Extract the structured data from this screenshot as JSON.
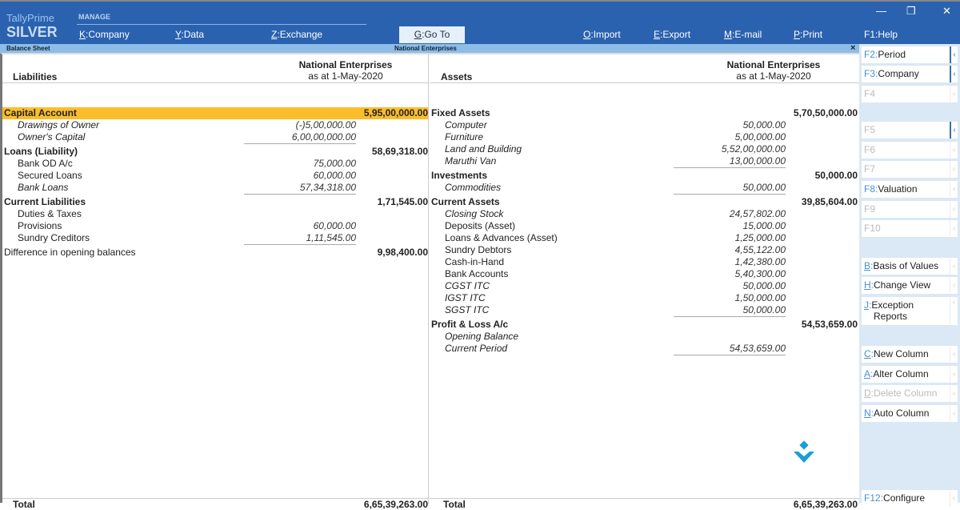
{
  "app": {
    "product": "TallyPrime",
    "edition": "SILVER",
    "section": "MANAGE"
  },
  "menu": [
    {
      "key": "K",
      "label": "Company"
    },
    {
      "key": "Y",
      "label": "Data"
    },
    {
      "key": "Z",
      "label": "Exchange"
    },
    {
      "key": "G",
      "label": "Go To"
    },
    {
      "key": "O",
      "label": "Import"
    },
    {
      "key": "E",
      "label": "Export"
    },
    {
      "key": "M",
      "label": "E-mail"
    },
    {
      "key": "P",
      "label": "Print"
    },
    {
      "key": "F1",
      "label": "Help"
    }
  ],
  "report": {
    "title": "Balance Sheet",
    "company": "National Enterprises",
    "date": "as at 1-May-2020",
    "close": "×"
  },
  "liabilities": {
    "heading": "Liabilities",
    "total_label": "Total",
    "total": "6,65,39,263.00",
    "rows": [
      {
        "type": "g",
        "label": "Capital Account",
        "amount": "5,95,00,000.00",
        "highlight": true
      },
      {
        "type": "i",
        "italic": true,
        "label": "Drawings of Owner",
        "sub": "(-)5,00,000.00"
      },
      {
        "type": "i",
        "italic": true,
        "label": "Owner's Capital",
        "sub": "6,00,00,000.00",
        "ul": true
      },
      {
        "type": "g",
        "label": "Loans (Liability)",
        "amount": "58,69,318.00"
      },
      {
        "type": "i",
        "label": "Bank OD A/c",
        "sub": "75,000.00"
      },
      {
        "type": "i",
        "label": "Secured Loans",
        "sub": "60,000.00"
      },
      {
        "type": "i",
        "italic": true,
        "label": "Bank Loans",
        "sub": "57,34,318.00",
        "ul": true
      },
      {
        "type": "g",
        "label": "Current Liabilities",
        "amount": "1,71,545.00"
      },
      {
        "type": "i",
        "label": "Duties & Taxes"
      },
      {
        "type": "i",
        "label": "Provisions",
        "sub": "60,000.00"
      },
      {
        "type": "i",
        "label": "Sundry Creditors",
        "sub": "1,11,545.00",
        "ul": true
      },
      {
        "type": "p",
        "label": "Difference in opening balances",
        "amount": "9,98,400.00"
      }
    ]
  },
  "assets": {
    "heading": "Assets",
    "total_label": "Total",
    "total": "6,65,39,263.00",
    "rows": [
      {
        "type": "g",
        "label": "Fixed Assets",
        "amount": "5,70,50,000.00"
      },
      {
        "type": "i",
        "italic": true,
        "label": "Computer",
        "sub": "50,000.00"
      },
      {
        "type": "i",
        "italic": true,
        "label": "Furniture",
        "sub": "5,00,000.00"
      },
      {
        "type": "i",
        "italic": true,
        "label": "Land and Building",
        "sub": "5,52,00,000.00"
      },
      {
        "type": "i",
        "italic": true,
        "label": "Maruthi Van",
        "sub": "13,00,000.00",
        "ul": true
      },
      {
        "type": "g",
        "label": "Investments",
        "amount": "50,000.00"
      },
      {
        "type": "i",
        "italic": true,
        "label": "Commodities",
        "sub": "50,000.00",
        "ul": true
      },
      {
        "type": "g",
        "label": "Current Assets",
        "amount": "39,85,604.00"
      },
      {
        "type": "i",
        "italic": true,
        "label": "Closing Stock",
        "sub": "24,57,802.00"
      },
      {
        "type": "i",
        "label": "Deposits (Asset)",
        "sub": "15,000.00"
      },
      {
        "type": "i",
        "label": "Loans & Advances (Asset)",
        "sub": "1,25,000.00"
      },
      {
        "type": "i",
        "label": "Sundry Debtors",
        "sub": "4,55,122.00"
      },
      {
        "type": "i",
        "label": "Cash-in-Hand",
        "sub": "1,42,380.00"
      },
      {
        "type": "i",
        "label": "Bank Accounts",
        "sub": "5,40,300.00"
      },
      {
        "type": "i",
        "italic": true,
        "label": "CGST ITC",
        "sub": "50,000.00"
      },
      {
        "type": "i",
        "italic": true,
        "label": "IGST ITC",
        "sub": "1,50,000.00"
      },
      {
        "type": "i",
        "italic": true,
        "label": "SGST ITC",
        "sub": "50,000.00",
        "ul": true
      },
      {
        "type": "g",
        "label": "Profit & Loss A/c",
        "amount": "54,53,659.00"
      },
      {
        "type": "i",
        "italic": true,
        "label": "Opening Balance"
      },
      {
        "type": "i",
        "italic": true,
        "label": "Current Period",
        "sub": "54,53,659.00",
        "ul": true
      }
    ]
  },
  "sidebar": [
    {
      "key": "F2",
      "label": "Period",
      "enabled": true,
      "active": true
    },
    {
      "key": "F3",
      "label": "Company",
      "enabled": true,
      "active": true
    },
    {
      "key": "F4",
      "label": "",
      "enabled": false
    },
    {
      "key": "F5",
      "label": "",
      "enabled": false,
      "active": true
    },
    {
      "key": "F6",
      "label": "",
      "enabled": false
    },
    {
      "key": "F7",
      "label": "",
      "enabled": false
    },
    {
      "key": "F8",
      "label": "Valuation",
      "enabled": true
    },
    {
      "key": "F9",
      "label": "",
      "enabled": false
    },
    {
      "key": "F10",
      "label": "",
      "enabled": false
    },
    {
      "key": "B",
      "label": "Basis of Values",
      "enabled": true
    },
    {
      "key": "H",
      "label": "Change View",
      "enabled": true
    },
    {
      "key": "J",
      "label": "Exception",
      "label2": "Reports",
      "enabled": true
    },
    {
      "key": "C",
      "label": "New Column",
      "enabled": true
    },
    {
      "key": "A",
      "label": "Alter Column",
      "enabled": true
    },
    {
      "key": "D",
      "label": "Delete Column",
      "enabled": false
    },
    {
      "key": "N",
      "label": "Auto Column",
      "enabled": true
    },
    {
      "key": "F12",
      "label": "Configure",
      "enabled": true
    }
  ],
  "colors": {
    "topbar": "#2b62b0",
    "subbar": "#8dbde6",
    "highlight": "#fbbd2b",
    "sidebar": "#dbe8f5",
    "key": "#4a90cf"
  }
}
